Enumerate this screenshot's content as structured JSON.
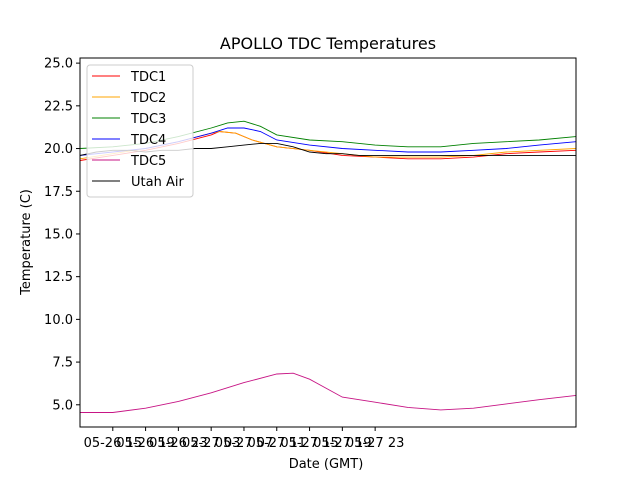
{
  "chart_data": {
    "type": "line",
    "title": "APOLLO TDC Temperatures",
    "xlabel": "Date (GMT)",
    "ylabel": "Temperature (C)",
    "x_unit": "hours since 05-26 11:00 GMT",
    "xlim": [
      0,
      60.5
    ],
    "ylim": [
      3.7,
      25.3
    ],
    "x_ticks": [
      {
        "value": 4,
        "label": "05-26 15"
      },
      {
        "value": 8,
        "label": "05-26 19"
      },
      {
        "value": 12,
        "label": "05-26 23"
      },
      {
        "value": 16,
        "label": "05-27 03"
      },
      {
        "value": 20,
        "label": "05-27 07"
      },
      {
        "value": 24,
        "label": "05-27 11"
      },
      {
        "value": 28,
        "label": "05-27 15"
      },
      {
        "value": 32,
        "label": "05-27 19"
      },
      {
        "value": 36,
        "label": "05-27 23"
      }
    ],
    "y_ticks": [
      {
        "value": 5.0,
        "label": "5.0"
      },
      {
        "value": 7.5,
        "label": "7.5"
      },
      {
        "value": 10.0,
        "label": "10.0"
      },
      {
        "value": 12.5,
        "label": "12.5"
      },
      {
        "value": 15.0,
        "label": "15.0"
      },
      {
        "value": 17.5,
        "label": "17.5"
      },
      {
        "value": 20.0,
        "label": "20.0"
      },
      {
        "value": 22.5,
        "label": "22.5"
      },
      {
        "value": 25.0,
        "label": "25.0"
      }
    ],
    "legend_position": "top-left",
    "series": [
      {
        "name": "TDC1",
        "color": "#ff0000",
        "x": [
          0,
          4,
          8,
          12,
          16,
          17,
          19,
          21,
          24,
          28,
          32,
          36,
          40,
          44,
          48,
          52,
          56,
          60.5
        ],
        "y": [
          19.3,
          19.6,
          19.9,
          20.3,
          20.8,
          21.0,
          20.9,
          20.5,
          20.1,
          19.9,
          19.6,
          19.5,
          19.4,
          19.4,
          19.5,
          19.7,
          19.8,
          19.9
        ]
      },
      {
        "name": "TDC2",
        "color": "#ffa500",
        "x": [
          0,
          4,
          8,
          12,
          16,
          17,
          19,
          21,
          24,
          28,
          32,
          36,
          40,
          44,
          48,
          52,
          56,
          60.5
        ],
        "y": [
          19.4,
          19.7,
          20.0,
          20.4,
          20.9,
          21.0,
          20.9,
          20.5,
          20.1,
          19.9,
          19.7,
          19.5,
          19.5,
          19.5,
          19.6,
          19.8,
          19.9,
          20.0
        ]
      },
      {
        "name": "TDC3",
        "color": "#008000",
        "x": [
          0,
          4,
          8,
          12,
          16,
          18,
          20,
          22,
          24,
          28,
          32,
          36,
          40,
          44,
          48,
          52,
          56,
          60.5
        ],
        "y": [
          20.0,
          20.1,
          20.3,
          20.7,
          21.2,
          21.5,
          21.6,
          21.3,
          20.8,
          20.5,
          20.4,
          20.2,
          20.1,
          20.1,
          20.3,
          20.4,
          20.5,
          20.7
        ]
      },
      {
        "name": "TDC4",
        "color": "#0000ff",
        "x": [
          0,
          4,
          8,
          12,
          16,
          18,
          20,
          22,
          24,
          28,
          32,
          36,
          40,
          44,
          48,
          52,
          56,
          60.5
        ],
        "y": [
          19.6,
          19.8,
          20.0,
          20.4,
          20.9,
          21.2,
          21.2,
          21.0,
          20.5,
          20.2,
          20.0,
          19.9,
          19.8,
          19.8,
          19.9,
          20.0,
          20.2,
          20.4
        ]
      },
      {
        "name": "TDC5",
        "color": "#c71585",
        "x": [
          0,
          4,
          8,
          12,
          16,
          20,
          24,
          26,
          28,
          32,
          36,
          40,
          44,
          48,
          52,
          56,
          60.5
        ],
        "y": [
          4.55,
          4.55,
          4.8,
          5.2,
          5.7,
          6.3,
          6.8,
          6.85,
          6.5,
          5.45,
          5.15,
          4.85,
          4.7,
          4.8,
          5.05,
          5.3,
          5.55
        ]
      },
      {
        "name": "Utah Air",
        "color": "#000000",
        "x": [
          0,
          2,
          4,
          6,
          8,
          10,
          12,
          14,
          16,
          18,
          20,
          22,
          24,
          26,
          28,
          30,
          32,
          34,
          36,
          38,
          40,
          42,
          44,
          46,
          48,
          50,
          52,
          54,
          56,
          58,
          60.5
        ],
        "y": [
          19.6,
          19.8,
          19.9,
          19.9,
          19.8,
          19.9,
          19.9,
          20.0,
          20.0,
          20.1,
          20.2,
          20.3,
          20.3,
          20.1,
          19.8,
          19.7,
          19.7,
          19.6,
          19.6,
          19.6,
          19.6,
          19.6,
          19.6,
          19.6,
          19.6,
          19.6,
          19.6,
          19.6,
          19.6,
          19.6,
          19.6
        ]
      }
    ]
  }
}
